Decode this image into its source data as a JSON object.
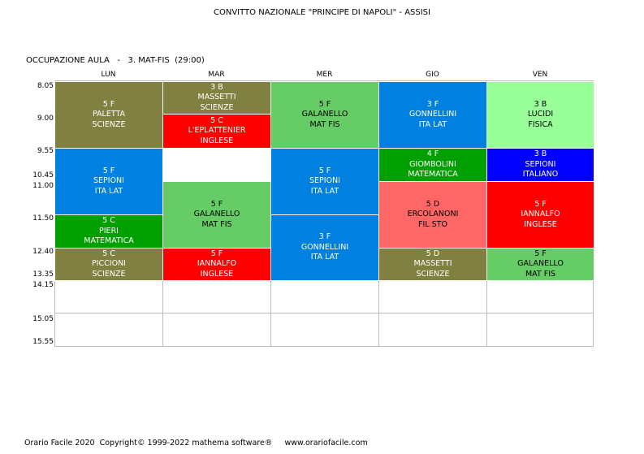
{
  "header": {
    "school": "CONVITTO NAZIONALE \"PRINCIPE DI NAPOLI\" - ASSISI",
    "subtitle_prefix": "OCCUPAZIONE AULA",
    "subtitle_class": "3. MAT-FIS",
    "subtitle_hours": "(29:00)"
  },
  "days": [
    "LUN",
    "MAR",
    "MER",
    "GIO",
    "VEN"
  ],
  "times": [
    "8.05",
    "9.00",
    "9.55",
    "10.45",
    "11.00",
    "11.50",
    "12.40",
    "13.35",
    "14.15",
    "15.05",
    "15.55"
  ],
  "colors": {
    "olive": "#808040",
    "red": "#ff0000",
    "lightgreen": "#66cc66",
    "blue": "#0080e0",
    "palegreen": "#99ff99",
    "green": "#00a000",
    "navy": "#0000ff",
    "salmon": "#ff6666"
  },
  "lessons": [
    {
      "day": 0,
      "start": 0,
      "end": 2,
      "class": "5 F",
      "teacher": "PALETTA",
      "subject": "SCIENZE",
      "color": "olive"
    },
    {
      "day": 0,
      "start": 2,
      "end": 4,
      "class": "5 F",
      "teacher": "SEPIONI",
      "subject": "ITA LAT",
      "color": "blue"
    },
    {
      "day": 0,
      "start": 4,
      "end": 5,
      "class": "5 C",
      "teacher": "PIERI",
      "subject": "MATEMATICA",
      "color": "green"
    },
    {
      "day": 0,
      "start": 5,
      "end": 6,
      "class": "5 C",
      "teacher": "PICCIONI",
      "subject": "SCIENZE",
      "color": "olive"
    },
    {
      "day": 1,
      "start": 0,
      "end": 1,
      "class": "3 B",
      "teacher": "MASSETTI",
      "subject": "SCIENZE",
      "color": "olive"
    },
    {
      "day": 1,
      "start": 1,
      "end": 2,
      "class": "5 C",
      "teacher": "L'EPLATTENIER",
      "subject": "INGLESE",
      "color": "red"
    },
    {
      "day": 1,
      "start": 3,
      "end": 5,
      "class": "5 F",
      "teacher": "GALANELLO",
      "subject": "MAT FIS",
      "color": "lightgreen"
    },
    {
      "day": 1,
      "start": 5,
      "end": 6,
      "class": "5 F",
      "teacher": "IANNALFO",
      "subject": "INGLESE",
      "color": "red"
    },
    {
      "day": 2,
      "start": 0,
      "end": 2,
      "class": "5 F",
      "teacher": "GALANELLO",
      "subject": "MAT FIS",
      "color": "lightgreen"
    },
    {
      "day": 2,
      "start": 2,
      "end": 4,
      "class": "5 F",
      "teacher": "SEPIONI",
      "subject": "ITA LAT",
      "color": "blue"
    },
    {
      "day": 2,
      "start": 4,
      "end": 6,
      "class": "3 F",
      "teacher": "GONNELLINI",
      "subject": "ITA LAT",
      "color": "blue"
    },
    {
      "day": 3,
      "start": 0,
      "end": 2,
      "class": "3 F",
      "teacher": "GONNELLINI",
      "subject": "ITA LAT",
      "color": "blue"
    },
    {
      "day": 3,
      "start": 2,
      "end": 3,
      "class": "4 F",
      "teacher": "GIOMBOLINI",
      "subject": "MATEMATICA",
      "color": "green"
    },
    {
      "day": 3,
      "start": 3,
      "end": 5,
      "class": "5 D",
      "teacher": "ERCOLANONI",
      "subject": "FIL STO",
      "color": "salmon"
    },
    {
      "day": 3,
      "start": 5,
      "end": 6,
      "class": "5 D",
      "teacher": "MASSETTI",
      "subject": "SCIENZE",
      "color": "olive"
    },
    {
      "day": 4,
      "start": 0,
      "end": 2,
      "class": "3 B",
      "teacher": "LUCIDI",
      "subject": "FISICA",
      "color": "palegreen"
    },
    {
      "day": 4,
      "start": 2,
      "end": 3,
      "class": "3 B",
      "teacher": "SEPIONI",
      "subject": "ITALIANO",
      "color": "navy"
    },
    {
      "day": 4,
      "start": 3,
      "end": 5,
      "class": "5 F",
      "teacher": "IANNALFO",
      "subject": "INGLESE",
      "color": "red"
    },
    {
      "day": 4,
      "start": 5,
      "end": 6,
      "class": "5 F",
      "teacher": "GALANELLO",
      "subject": "MAT FIS",
      "color": "lightgreen"
    }
  ],
  "footer": {
    "product": "Orario Facile 2020",
    "copyright": "Copyright© 1999-2022 mathema software®",
    "website": "www.orariofacile.com"
  }
}
